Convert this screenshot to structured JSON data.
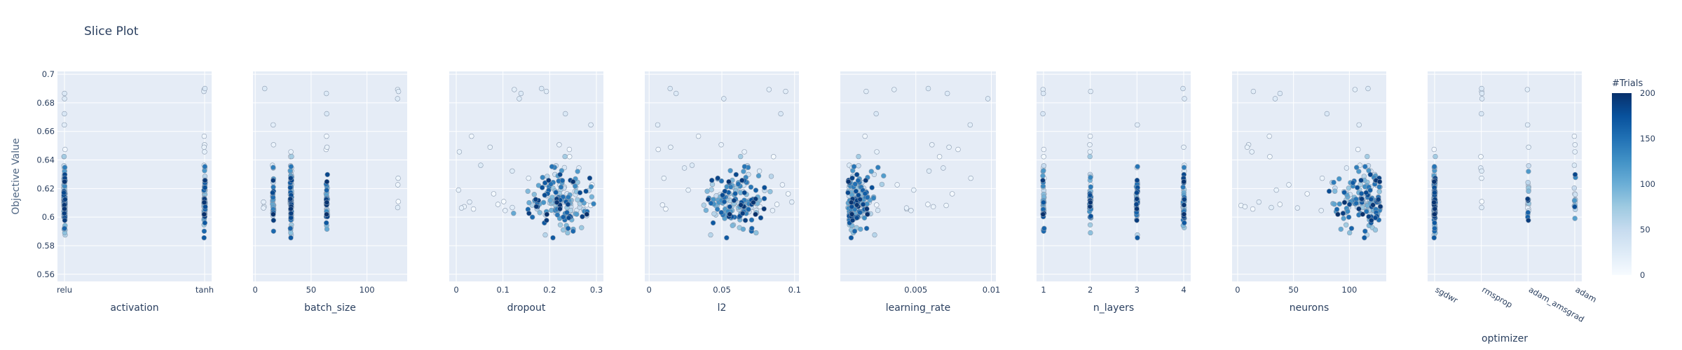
{
  "chart_data": {
    "type": "scatter",
    "title": "Slice Plot",
    "ylabel": "Objective Value",
    "ylim": [
      0.555,
      0.702
    ],
    "yticks": [
      0.56,
      0.58,
      0.6,
      0.62,
      0.64,
      0.66,
      0.68,
      0.7
    ],
    "ytick_labels": [
      "0.56",
      "0.58",
      "0.6",
      "0.62",
      "0.64",
      "0.66",
      "0.68",
      "0.7"
    ],
    "colorbar": {
      "title": "#Trials",
      "range": [
        0,
        200
      ],
      "ticks": [
        0,
        50,
        100,
        150,
        200
      ],
      "tick_labels": [
        "0",
        "50",
        "100",
        "150",
        "200"
      ],
      "colorscale": [
        "#f7fbff",
        "#deebf7",
        "#c6dbef",
        "#9ecae1",
        "#6baed6",
        "#4292c6",
        "#2171b5",
        "#08519c",
        "#08306b"
      ]
    },
    "colors": {
      "plot_bg": "#e5ecf6",
      "grid": "#ffffff",
      "marker_edge": "#8a9bb0"
    },
    "panels": [
      {
        "xlabel": "activation",
        "kind": "category",
        "categories": [
          "relu",
          "tanh"
        ],
        "tick_labels": [
          "relu",
          "tanh"
        ]
      },
      {
        "xlabel": "batch_size",
        "kind": "numeric",
        "xlim": [
          -2,
          136
        ],
        "ticks": [
          0,
          50,
          100
        ],
        "tick_labels": [
          "0",
          "50",
          "100"
        ],
        "levels": [
          8,
          16,
          32,
          64,
          128
        ]
      },
      {
        "xlabel": "dropout",
        "kind": "numeric",
        "xlim": [
          -0.015,
          0.315
        ],
        "ticks": [
          0,
          0.1,
          0.2,
          0.3
        ],
        "tick_labels": [
          "0",
          "0.1",
          "0.2",
          "0.3"
        ]
      },
      {
        "xlabel": "l2",
        "kind": "numeric",
        "xlim": [
          -0.003,
          0.103
        ],
        "ticks": [
          0,
          0.05,
          0.1
        ],
        "tick_labels": [
          "0",
          "0.05",
          "0.1"
        ]
      },
      {
        "xlabel": "learning_rate",
        "kind": "numeric",
        "xlim": [
          0.0,
          0.0103
        ],
        "ticks": [
          0.005,
          0.01
        ],
        "tick_labels": [
          "0.005",
          "0.01"
        ]
      },
      {
        "xlabel": "n_layers",
        "kind": "category",
        "categories": [
          1,
          2,
          3,
          4
        ],
        "tick_labels": [
          "1",
          "2",
          "3",
          "4"
        ]
      },
      {
        "xlabel": "neurons",
        "kind": "numeric",
        "xlim": [
          -5,
          133
        ],
        "ticks": [
          0,
          50,
          100
        ],
        "tick_labels": [
          "0",
          "50",
          "100"
        ]
      },
      {
        "xlabel": "optimizer",
        "kind": "category",
        "categories": [
          "sgdwr",
          "rmsprop",
          "adam_amsgrad",
          "adam"
        ],
        "tick_labels": [
          "sgdwr",
          "rmsprop",
          "adam_amsgrad",
          "adam"
        ]
      }
    ],
    "trial_count": 200
  }
}
